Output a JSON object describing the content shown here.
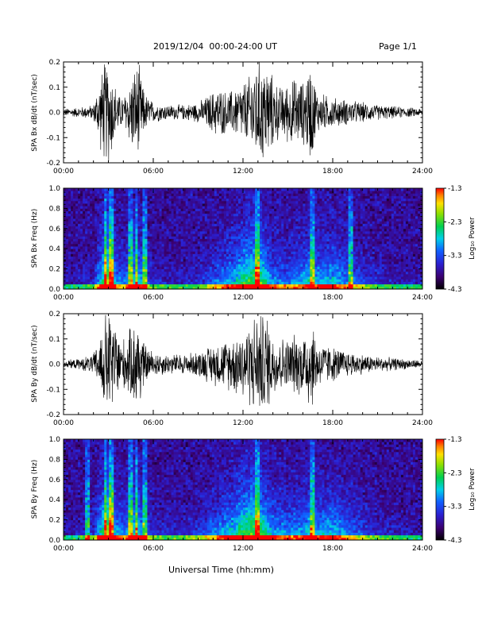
{
  "header": {
    "title": "2019/12/04  00:00-24:00 UT",
    "page": "Page 1/1"
  },
  "x_axis_title": "Universal Time (hh:mm)",
  "chart_data": [
    {
      "type": "line",
      "ylabel": "SPA Bx dB/dt (nT/sec)",
      "ylim": [
        -0.2,
        0.2
      ],
      "xlim_hours": [
        0,
        24
      ],
      "x_ticks": [
        "00:00",
        "06:00",
        "12:00",
        "18:00",
        "24:00"
      ],
      "y_ticks": [
        "-0.2",
        "-0.1",
        "0.0",
        "0.1",
        "0.2"
      ],
      "envelope_amplitude": {
        "x_hours": [
          0,
          1,
          2,
          2.7,
          3.1,
          3.4,
          3.8,
          4.2,
          4.6,
          5.0,
          5.4,
          6,
          7,
          8,
          9,
          9.5,
          10.3,
          11,
          11.5,
          12,
          12.4,
          12.8,
          13.2,
          13.6,
          14,
          14.5,
          15,
          15.6,
          16,
          16.5,
          17,
          18,
          19,
          20,
          21,
          22,
          23,
          24
        ],
        "values": [
          0.015,
          0.02,
          0.03,
          0.2,
          0.2,
          0.12,
          0.06,
          0.08,
          0.16,
          0.2,
          0.08,
          0.04,
          0.03,
          0.03,
          0.04,
          0.06,
          0.1,
          0.08,
          0.1,
          0.12,
          0.14,
          0.2,
          0.2,
          0.2,
          0.14,
          0.1,
          0.12,
          0.14,
          0.12,
          0.2,
          0.08,
          0.06,
          0.05,
          0.04,
          0.03,
          0.025,
          0.02,
          0.015
        ]
      }
    },
    {
      "type": "heatmap",
      "ylabel": "SPA Bx Freq (Hz)",
      "colorbar_label": "Log₁₀ Power",
      "colorbar_ticks": [
        "-1.3",
        "-2.3",
        "-3.3",
        "-4.3"
      ],
      "clim": [
        -4.3,
        -1.3
      ],
      "ylim": [
        0.0,
        1.0
      ],
      "xlim_hours": [
        0,
        24
      ],
      "x_ticks": [
        "00:00",
        "06:00",
        "12:00",
        "18:00",
        "24:00"
      ],
      "y_ticks": [
        "0.0",
        "0.2",
        "0.4",
        "0.6",
        "0.8",
        "1.0"
      ],
      "activity_hours": [
        0,
        1,
        2,
        2.7,
        3.1,
        3.5,
        4,
        4.5,
        5,
        5.5,
        6,
        7,
        8,
        9,
        10,
        11,
        11.5,
        12,
        12.5,
        13,
        13.5,
        14,
        15,
        16,
        16.5,
        17,
        18,
        19,
        20,
        21,
        22,
        23,
        24
      ],
      "activity_level": [
        0.05,
        0.08,
        0.15,
        0.7,
        0.9,
        0.4,
        0.3,
        0.5,
        0.55,
        0.3,
        0.15,
        0.12,
        0.12,
        0.15,
        0.3,
        0.45,
        0.5,
        0.65,
        0.7,
        0.75,
        0.6,
        0.4,
        0.35,
        0.45,
        0.55,
        0.45,
        0.5,
        0.35,
        0.25,
        0.15,
        0.1,
        0.08,
        0.05
      ],
      "spike_hours": [
        2.8,
        3.2,
        4.5,
        4.9,
        5.4,
        13.0,
        16.6,
        19.2
      ]
    },
    {
      "type": "line",
      "ylabel": "SPA By dB/dt (nT/sec)",
      "ylim": [
        -0.2,
        0.2
      ],
      "xlim_hours": [
        0,
        24
      ],
      "x_ticks": [
        "00:00",
        "06:00",
        "12:00",
        "18:00",
        "24:00"
      ],
      "y_ticks": [
        "-0.2",
        "-0.1",
        "0.0",
        "0.1",
        "0.2"
      ],
      "envelope_amplitude": {
        "x_hours": [
          0,
          1,
          2,
          2.4,
          2.8,
          3.2,
          3.6,
          4.0,
          4.5,
          5.0,
          5.4,
          6,
          7,
          8,
          9,
          10,
          11,
          11.5,
          12,
          12.4,
          12.8,
          13.2,
          13.6,
          14,
          15,
          15.5,
          16,
          16.5,
          17,
          18,
          19,
          20,
          21,
          22,
          23,
          24
        ],
        "values": [
          0.015,
          0.02,
          0.04,
          0.1,
          0.2,
          0.2,
          0.14,
          0.1,
          0.14,
          0.2,
          0.08,
          0.05,
          0.04,
          0.04,
          0.05,
          0.08,
          0.1,
          0.12,
          0.14,
          0.16,
          0.2,
          0.2,
          0.2,
          0.12,
          0.1,
          0.12,
          0.12,
          0.2,
          0.09,
          0.07,
          0.05,
          0.04,
          0.03,
          0.025,
          0.02,
          0.015
        ]
      }
    },
    {
      "type": "heatmap",
      "ylabel": "SPA By Freq (Hz)",
      "colorbar_label": "Log₁₀ Power",
      "colorbar_ticks": [
        "-1.3",
        "-2.3",
        "-3.3",
        "-4.3"
      ],
      "clim": [
        -4.3,
        -1.3
      ],
      "ylim": [
        0.0,
        1.0
      ],
      "xlim_hours": [
        0,
        24
      ],
      "x_ticks": [
        "00:00",
        "06:00",
        "12:00",
        "18:00",
        "24:00"
      ],
      "y_ticks": [
        "0.0",
        "0.2",
        "0.4",
        "0.6",
        "0.8",
        "1.0"
      ],
      "activity_hours": [
        0,
        1,
        2,
        2.7,
        3.1,
        3.5,
        4,
        4.5,
        5,
        5.5,
        6,
        7,
        8,
        9,
        10,
        11,
        11.5,
        12,
        12.5,
        13,
        13.5,
        14,
        15,
        16,
        16.5,
        17,
        18,
        19,
        20,
        21,
        22,
        23,
        24
      ],
      "activity_level": [
        0.05,
        0.08,
        0.2,
        0.7,
        0.9,
        0.45,
        0.35,
        0.55,
        0.55,
        0.3,
        0.18,
        0.15,
        0.15,
        0.2,
        0.35,
        0.5,
        0.55,
        0.7,
        0.75,
        0.75,
        0.6,
        0.45,
        0.4,
        0.45,
        0.55,
        0.45,
        0.5,
        0.35,
        0.25,
        0.15,
        0.1,
        0.08,
        0.05
      ],
      "spike_hours": [
        1.6,
        2.8,
        3.2,
        4.5,
        4.9,
        5.4,
        13.0,
        16.6
      ]
    }
  ]
}
